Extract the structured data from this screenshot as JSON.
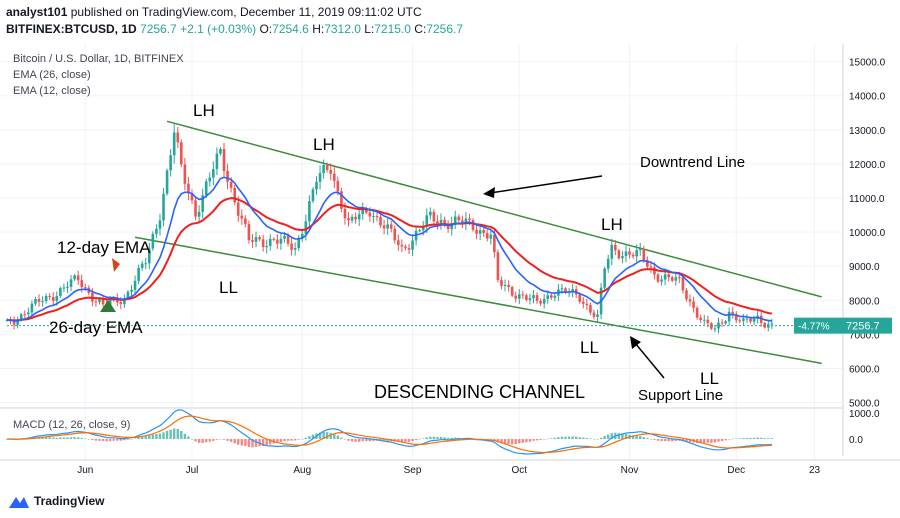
{
  "header": {
    "author": "analyst101",
    "published_text": "published on TradingView.com, December 11, 2019 09:11:02 UTC",
    "symbol": "BITFINEX:BTCUSD, 1D",
    "last": "7256.7",
    "change": "+2.1 (+0.03%)",
    "open_label": "O:",
    "open": "7254.6",
    "high_label": "H:",
    "high": "7312.0",
    "low_label": "L:",
    "low": "7215.0",
    "close_label": "C:",
    "close": "7256.7"
  },
  "legend": {
    "title": "Bitcoin / U.S. Dollar, 1D, BITFINEX",
    "ema26": "EMA (26, close)",
    "ema12": "EMA (12, close)",
    "macd": "MACD (12, 26, close, 9)"
  },
  "price_badge": {
    "pct": "-4.77%",
    "price": "7256.7"
  },
  "footer": {
    "brand": "TradingView"
  },
  "colors": {
    "up": "#26a69a",
    "down": "#ef5350",
    "ema12": "#2962ff",
    "ema26": "#f02020",
    "channel": "#3d8a3d",
    "macd": "#2196f3",
    "signal": "#ff6d00",
    "badge": "#26a69a"
  },
  "annotations": {
    "lh1": "LH",
    "lh2": "LH",
    "lh3": "LH",
    "ll1": "LL",
    "ll2": "LL",
    "ll3": "LL",
    "downtrend": "Downtrend Line",
    "ema12_label": "12-day EMA",
    "ema26_label": "26-day EMA",
    "channel_title": "DESCENDING CHANNEL",
    "support": "Support Line"
  },
  "chart_data": {
    "type": "candlestick",
    "title": "Bitcoin / U.S. Dollar, 1D, BITFINEX",
    "series_names": [
      "EMA (26, close)",
      "EMA (12, close)"
    ],
    "y_ticks": [
      5000,
      6000,
      7000,
      8000,
      9000,
      10000,
      11000,
      12000,
      13000,
      14000,
      15000
    ],
    "y_tick_labels": [
      "5000.0",
      "6000.0",
      "7000.0",
      "8000.0",
      "9000.0",
      "10000.0",
      "11000.0",
      "12000.0",
      "13000.0",
      "14000.0",
      "15000.0"
    ],
    "x_ticks": [
      {
        "label": "Jun",
        "date": "2019-06-01"
      },
      {
        "label": "Jul",
        "date": "2019-07-01"
      },
      {
        "label": "Aug",
        "date": "2019-08-01"
      },
      {
        "label": "Sep",
        "date": "2019-09-01"
      },
      {
        "label": "Oct",
        "date": "2019-10-01"
      },
      {
        "label": "Nov",
        "date": "2019-11-01"
      },
      {
        "label": "Dec",
        "date": "2019-12-01"
      },
      {
        "label": "23",
        "date": "2019-12-23"
      }
    ],
    "date_start": "2019-05-10",
    "date_end": "2019-12-31",
    "ylim": [
      4900,
      15400
    ],
    "key_points": [
      {
        "date": "2019-05-10",
        "close": 7300
      },
      {
        "date": "2019-05-20",
        "close": 8000
      },
      {
        "date": "2019-05-30",
        "close": 8600
      },
      {
        "date": "2019-06-06",
        "close": 7800
      },
      {
        "date": "2019-06-12",
        "close": 8100
      },
      {
        "date": "2019-06-18",
        "close": 9100
      },
      {
        "date": "2019-06-22",
        "close": 10600
      },
      {
        "date": "2019-06-26",
        "close": 12900
      },
      {
        "date": "2019-06-28",
        "close": 11800
      },
      {
        "date": "2019-07-02",
        "close": 10600
      },
      {
        "date": "2019-07-09",
        "close": 12300
      },
      {
        "date": "2019-07-12",
        "close": 11300
      },
      {
        "date": "2019-07-17",
        "close": 9700
      },
      {
        "date": "2019-07-24",
        "close": 9800
      },
      {
        "date": "2019-07-30",
        "close": 9500
      },
      {
        "date": "2019-08-05",
        "close": 11500
      },
      {
        "date": "2019-08-09",
        "close": 11900
      },
      {
        "date": "2019-08-14",
        "close": 10200
      },
      {
        "date": "2019-08-20",
        "close": 10700
      },
      {
        "date": "2019-08-29",
        "close": 9500
      },
      {
        "date": "2019-09-06",
        "close": 10400
      },
      {
        "date": "2019-09-18",
        "close": 10200
      },
      {
        "date": "2019-09-23",
        "close": 9900
      },
      {
        "date": "2019-09-25",
        "close": 8500
      },
      {
        "date": "2019-10-06",
        "close": 7900
      },
      {
        "date": "2019-10-11",
        "close": 8300
      },
      {
        "date": "2019-10-18",
        "close": 8100
      },
      {
        "date": "2019-10-23",
        "close": 7500
      },
      {
        "date": "2019-10-25",
        "close": 8900
      },
      {
        "date": "2019-10-27",
        "close": 9500
      },
      {
        "date": "2019-11-04",
        "close": 9300
      },
      {
        "date": "2019-11-08",
        "close": 8800
      },
      {
        "date": "2019-11-15",
        "close": 8500
      },
      {
        "date": "2019-11-22",
        "close": 7300
      },
      {
        "date": "2019-11-25",
        "close": 7100
      },
      {
        "date": "2019-11-29",
        "close": 7700
      },
      {
        "date": "2019-12-03",
        "close": 7300
      },
      {
        "date": "2019-12-07",
        "close": 7500
      },
      {
        "date": "2019-12-11",
        "close": 7257
      }
    ],
    "trend_lines": [
      {
        "name": "Downtrend Line",
        "from": {
          "date": "2019-06-24",
          "price": 13250
        },
        "to": {
          "date": "2019-12-25",
          "price": 8100
        }
      },
      {
        "name": "Support Line",
        "from": {
          "date": "2019-06-15",
          "price": 9850
        },
        "to": {
          "date": "2019-12-25",
          "price": 6150
        }
      }
    ],
    "macd_ticks": [
      {
        "value": 1000,
        "label": "1000.0"
      },
      {
        "value": 0,
        "label": "0.0"
      }
    ],
    "last_price": 7256.7,
    "last_change_pct": -4.77
  }
}
